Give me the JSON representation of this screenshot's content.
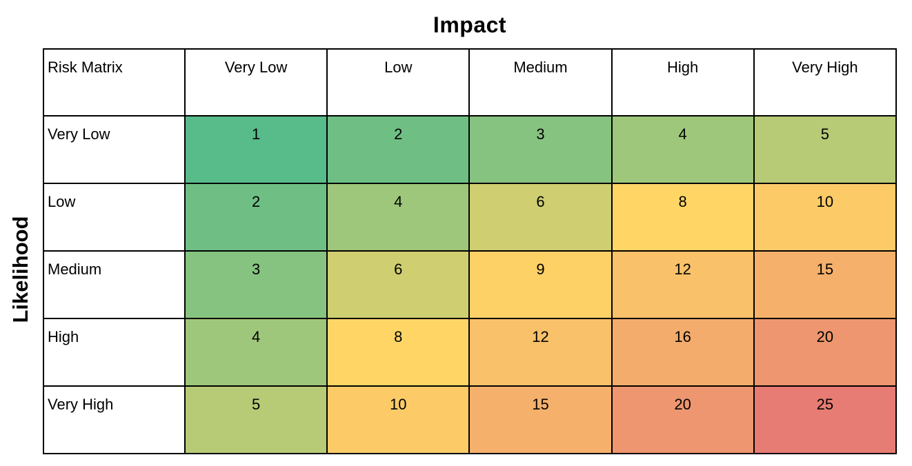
{
  "chart_data": {
    "type": "heatmap",
    "title": "Impact",
    "xlabel": "Impact",
    "ylabel": "Likelihood",
    "corner_label": "Risk Matrix",
    "x_categories": [
      "Very Low",
      "Low",
      "Medium",
      "High",
      "Very High"
    ],
    "y_categories": [
      "Very Low",
      "Low",
      "Medium",
      "High",
      "Very High"
    ],
    "rows": [
      {
        "label": "Very Low",
        "cells": [
          {
            "value": 1,
            "color": "#57bb8a"
          },
          {
            "value": 2,
            "color": "#6fbf85"
          },
          {
            "value": 3,
            "color": "#87c380"
          },
          {
            "value": 4,
            "color": "#9fc77b"
          },
          {
            "value": 5,
            "color": "#b7ca75"
          }
        ]
      },
      {
        "label": "Low",
        "cells": [
          {
            "value": 2,
            "color": "#6fbf85"
          },
          {
            "value": 4,
            "color": "#9fc77b"
          },
          {
            "value": 6,
            "color": "#cfce70"
          },
          {
            "value": 8,
            "color": "#ffd666"
          },
          {
            "value": 10,
            "color": "#fccb68"
          }
        ]
      },
      {
        "label": "Medium",
        "cells": [
          {
            "value": 3,
            "color": "#87c380"
          },
          {
            "value": 6,
            "color": "#cfce70"
          },
          {
            "value": 9,
            "color": "#fed167"
          },
          {
            "value": 12,
            "color": "#f9c169"
          },
          {
            "value": 15,
            "color": "#f5b16b"
          }
        ]
      },
      {
        "label": "High",
        "cells": [
          {
            "value": 4,
            "color": "#9fc77b"
          },
          {
            "value": 8,
            "color": "#ffd666"
          },
          {
            "value": 12,
            "color": "#f9c169"
          },
          {
            "value": 16,
            "color": "#f3ac6c"
          },
          {
            "value": 20,
            "color": "#ed966f"
          }
        ]
      },
      {
        "label": "Very High",
        "cells": [
          {
            "value": 5,
            "color": "#b7ca75"
          },
          {
            "value": 10,
            "color": "#fccb68"
          },
          {
            "value": 15,
            "color": "#f5b16b"
          },
          {
            "value": 20,
            "color": "#ed966f"
          },
          {
            "value": 25,
            "color": "#e67c73"
          }
        ]
      }
    ],
    "color_scale": {
      "min": {
        "value": 1,
        "color": "#57bb8a"
      },
      "mid": {
        "value": 8,
        "color": "#ffd666"
      },
      "max": {
        "value": 25,
        "color": "#e67c73"
      }
    }
  },
  "style": {
    "border_color": "#000000",
    "background_color": "#ffffff",
    "text_color": "#000000"
  }
}
